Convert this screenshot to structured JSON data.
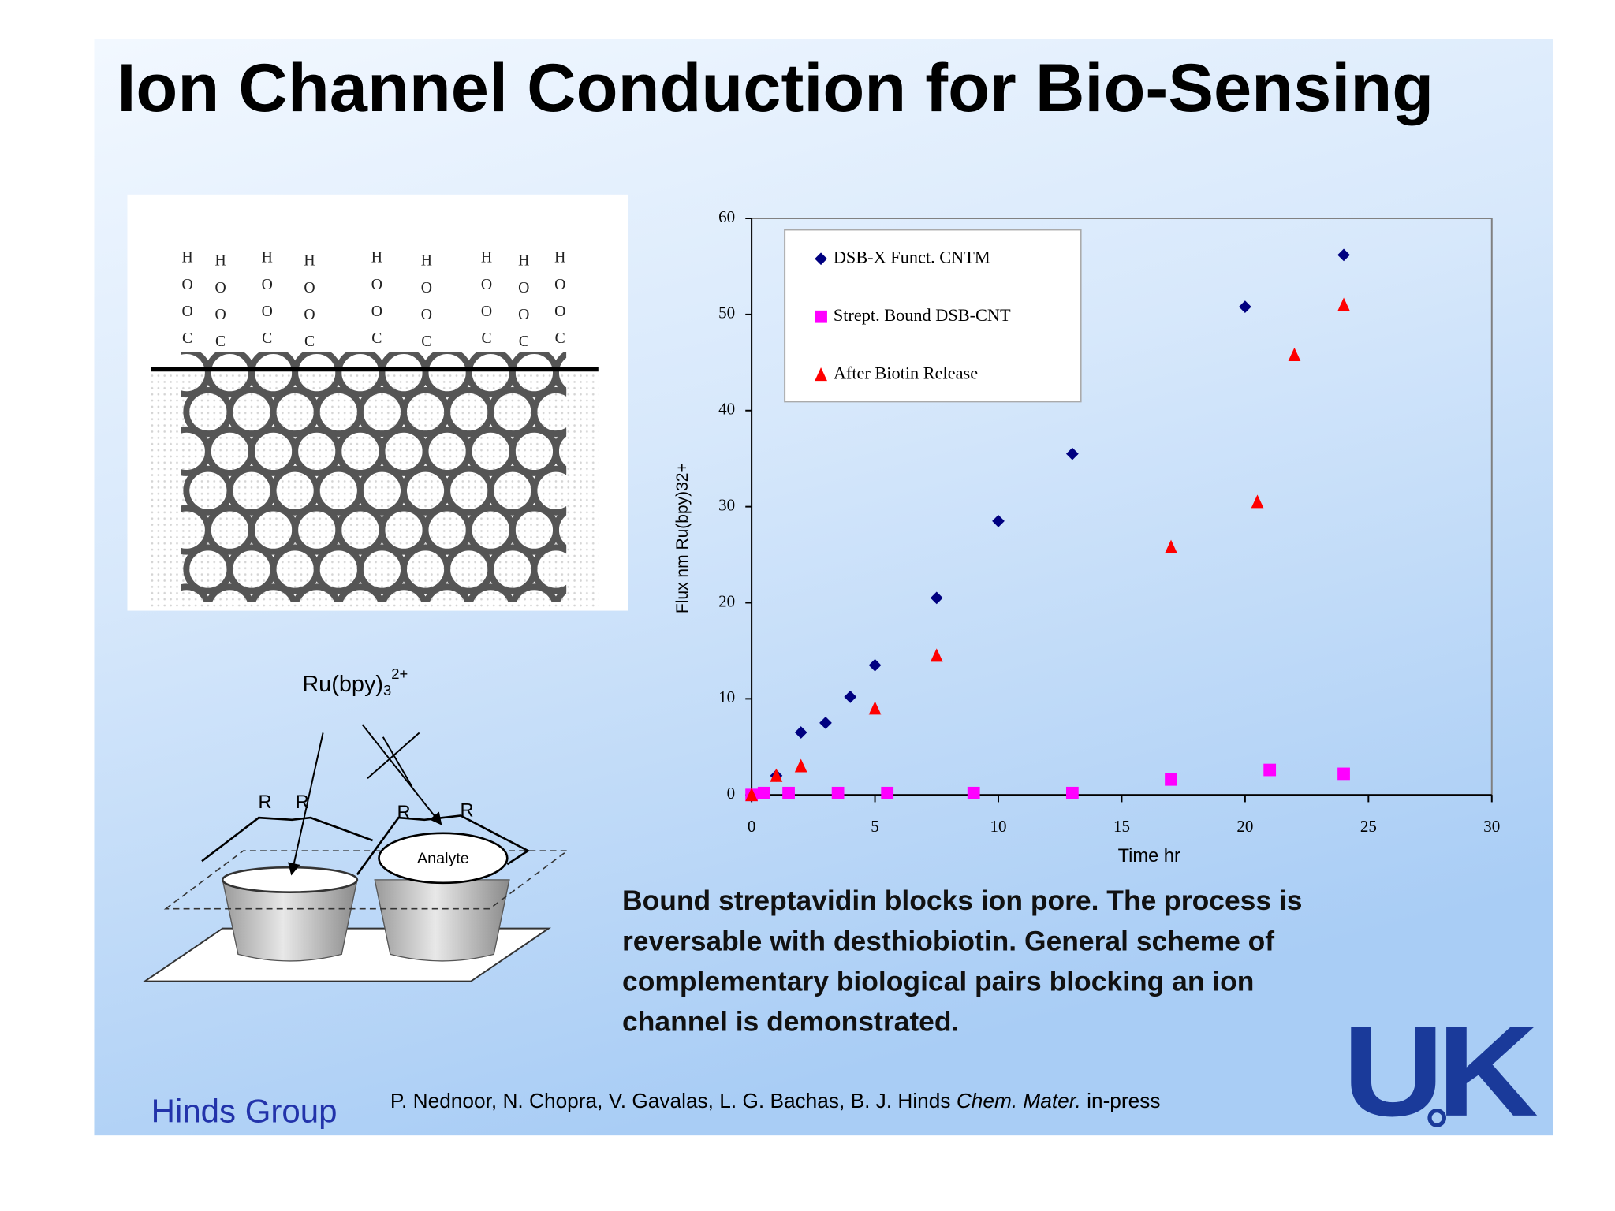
{
  "title": "Ion Channel Conduction for Bio-Sensing",
  "molecule_labels": [
    "H",
    "O",
    "O",
    "C"
  ],
  "reagent": {
    "base": "Ru(bpy)",
    "sub": "3",
    "sup": "2+"
  },
  "substituent": "R",
  "analyte": "Analyte",
  "chart_data": {
    "type": "scatter",
    "xlabel": "Time hr",
    "ylabel": "Flux nm Ru(bpy)32+",
    "xlim": [
      0,
      30
    ],
    "xticks": [
      0,
      5,
      10,
      15,
      20,
      25,
      30
    ],
    "ylim": [
      0,
      60
    ],
    "yticks": [
      0,
      10,
      20,
      30,
      40,
      50,
      60
    ],
    "grid": false,
    "legend": "upper left",
    "series": [
      {
        "name": "DSB-X Funct. CNTM",
        "color": "#000080",
        "marker": "diamond",
        "x": [
          0,
          1,
          2,
          3,
          4,
          5,
          7.5,
          10,
          13,
          20,
          24
        ],
        "values": [
          0,
          2,
          6.5,
          7.5,
          10.2,
          13.5,
          20.5,
          28.5,
          35.5,
          50.8,
          56.2
        ]
      },
      {
        "name": "Strept. Bound DSB-CNT",
        "color": "#ff00ff",
        "marker": "square",
        "x": [
          0,
          0.5,
          1.5,
          3.5,
          5.5,
          9,
          13,
          17,
          21,
          24
        ],
        "values": [
          0,
          0.2,
          0.2,
          0.2,
          0.2,
          0.2,
          0.2,
          1.6,
          2.6,
          2.2
        ]
      },
      {
        "name": "After Biotin Release",
        "color": "#ff0000",
        "marker": "triangle",
        "x": [
          0,
          1,
          2,
          5,
          7.5,
          17,
          20.5,
          22,
          24
        ],
        "values": [
          0,
          2,
          3,
          9,
          14.5,
          25.8,
          30.5,
          45.8,
          51
        ]
      }
    ]
  },
  "caption": [
    "Bound streptavidin blocks ion pore.  The process is",
    "reversable with desthiobiotin.  General scheme of",
    "complementary biological pairs blocking an ion",
    "channel is demonstrated."
  ],
  "footer": {
    "group": "Hinds Group",
    "citation": {
      "authors": "P. Nednoor, N. Chopra, V. Gavalas, L. G. Bachas, B. J. Hinds ",
      "journal": "Chem. Mater.",
      "status": " in-press"
    },
    "logo": "UK"
  }
}
